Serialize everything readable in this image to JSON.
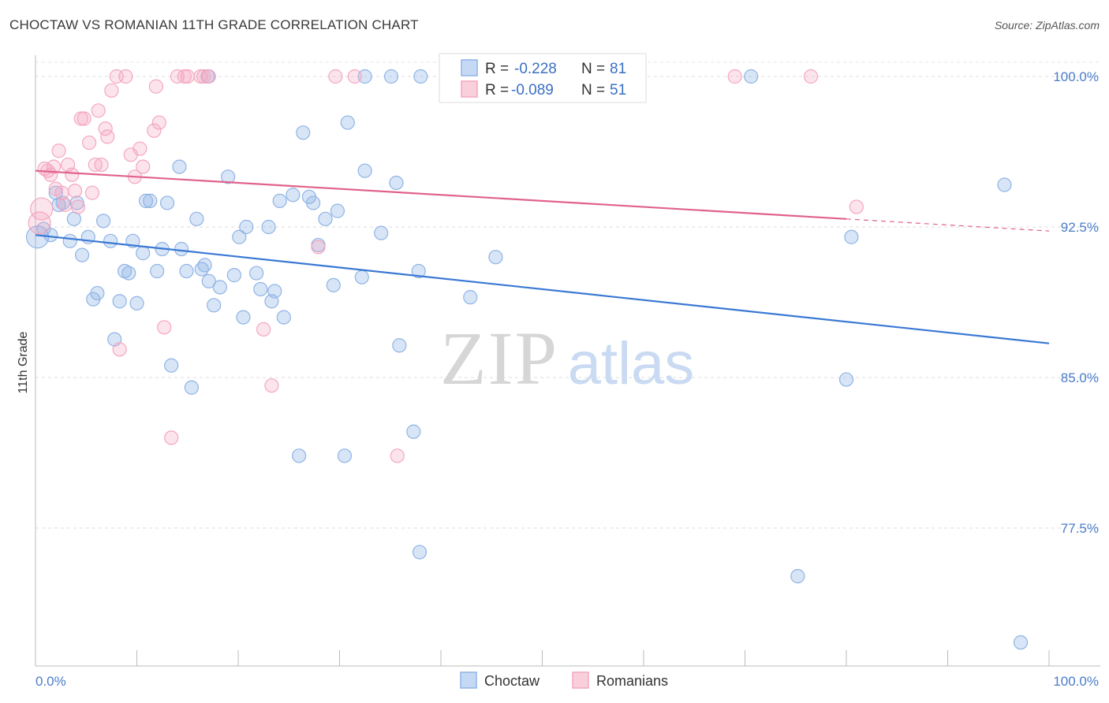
{
  "title": "CHOCTAW VS ROMANIAN 11TH GRADE CORRELATION CHART",
  "source": "Source: ZipAtlas.com",
  "watermark": {
    "zip": "ZIP",
    "atlas": "atlas"
  },
  "chart_data": {
    "type": "scatter",
    "title": "CHOCTAW VS ROMANIAN 11TH GRADE CORRELATION CHART",
    "xlabel": "",
    "ylabel": "11th Grade",
    "xlim": [
      0,
      100
    ],
    "ylim": [
      71,
      100.5
    ],
    "x_tick_labels": [
      "0.0%",
      "100.0%"
    ],
    "y_ticks": [
      77.5,
      85.0,
      92.5,
      100.0
    ],
    "y_tick_labels": [
      "77.5%",
      "85.0%",
      "92.5%",
      "100.0%"
    ],
    "grid": true,
    "legend_position": "top-center",
    "series": [
      {
        "name": "Choctaw",
        "color": "#8fb4e6",
        "line_color": "#3a78d4",
        "R": "-0.228",
        "N": "81",
        "trend": {
          "x": [
            0,
            100
          ],
          "y": [
            92.1,
            86.7
          ]
        },
        "points": [
          [
            0.2,
            92.0
          ],
          [
            0.8,
            92.4
          ],
          [
            1.5,
            92.1
          ],
          [
            2.0,
            94.2
          ],
          [
            2.3,
            93.6
          ],
          [
            2.7,
            93.7
          ],
          [
            3.4,
            91.8
          ],
          [
            3.8,
            92.9
          ],
          [
            4.1,
            93.7
          ],
          [
            4.6,
            91.1
          ],
          [
            5.2,
            92.0
          ],
          [
            5.7,
            88.9
          ],
          [
            6.1,
            89.2
          ],
          [
            6.7,
            92.8
          ],
          [
            7.4,
            91.8
          ],
          [
            7.8,
            86.9
          ],
          [
            8.3,
            88.8
          ],
          [
            8.8,
            90.3
          ],
          [
            9.2,
            90.2
          ],
          [
            9.6,
            91.8
          ],
          [
            10.0,
            88.7
          ],
          [
            10.6,
            91.2
          ],
          [
            10.9,
            93.8
          ],
          [
            11.3,
            93.8
          ],
          [
            12.0,
            90.3
          ],
          [
            12.5,
            91.4
          ],
          [
            13.0,
            93.7
          ],
          [
            13.4,
            85.6
          ],
          [
            14.2,
            95.5
          ],
          [
            14.4,
            91.4
          ],
          [
            14.9,
            90.3
          ],
          [
            15.4,
            84.5
          ],
          [
            15.9,
            92.9
          ],
          [
            16.4,
            90.4
          ],
          [
            16.7,
            90.6
          ],
          [
            17.1,
            89.8
          ],
          [
            17.6,
            88.6
          ],
          [
            18.2,
            89.5
          ],
          [
            19.0,
            95.0
          ],
          [
            19.6,
            90.1
          ],
          [
            20.1,
            92.0
          ],
          [
            20.5,
            88.0
          ],
          [
            20.8,
            92.5
          ],
          [
            21.8,
            90.2
          ],
          [
            22.2,
            89.4
          ],
          [
            23.0,
            92.5
          ],
          [
            23.3,
            88.8
          ],
          [
            23.6,
            89.3
          ],
          [
            24.1,
            93.8
          ],
          [
            24.5,
            88.0
          ],
          [
            25.4,
            94.1
          ],
          [
            26.0,
            81.1
          ],
          [
            26.4,
            97.2
          ],
          [
            27.0,
            94.0
          ],
          [
            27.4,
            93.7
          ],
          [
            27.9,
            91.6
          ],
          [
            28.6,
            92.9
          ],
          [
            29.4,
            89.6
          ],
          [
            29.8,
            93.3
          ],
          [
            30.5,
            81.1
          ],
          [
            30.8,
            97.7
          ],
          [
            32.2,
            90.0
          ],
          [
            32.5,
            95.3
          ],
          [
            34.1,
            92.2
          ],
          [
            35.6,
            94.7
          ],
          [
            35.9,
            86.6
          ],
          [
            37.8,
            90.3
          ],
          [
            37.3,
            82.3
          ],
          [
            37.9,
            76.3
          ],
          [
            38.0,
            100.0
          ],
          [
            42.9,
            89.0
          ],
          [
            45.4,
            91.0
          ],
          [
            32.5,
            100.0
          ],
          [
            35.1,
            100.0
          ],
          [
            70.6,
            100.0
          ],
          [
            80.0,
            84.9
          ],
          [
            80.5,
            92.0
          ],
          [
            95.6,
            94.6
          ],
          [
            97.2,
            71.8
          ],
          [
            75.2,
            75.1
          ],
          [
            17.0,
            100.0
          ]
        ]
      },
      {
        "name": "Romanians",
        "color": "#f4a7bf",
        "line_color": "#e0628c",
        "R": "-0.089",
        "N": "51",
        "trend": {
          "x": [
            0,
            80
          ],
          "y": [
            95.3,
            92.9
          ]
        },
        "points": [
          [
            0.4,
            92.7
          ],
          [
            0.6,
            93.4
          ],
          [
            0.9,
            95.4
          ],
          [
            1.2,
            95.3
          ],
          [
            1.5,
            95.1
          ],
          [
            1.8,
            95.5
          ],
          [
            2.0,
            94.4
          ],
          [
            2.3,
            96.3
          ],
          [
            2.6,
            94.2
          ],
          [
            2.9,
            93.6
          ],
          [
            3.2,
            95.6
          ],
          [
            3.6,
            95.1
          ],
          [
            3.9,
            94.3
          ],
          [
            4.2,
            93.5
          ],
          [
            4.5,
            97.9
          ],
          [
            4.8,
            97.9
          ],
          [
            5.3,
            96.7
          ],
          [
            5.6,
            94.2
          ],
          [
            5.9,
            95.6
          ],
          [
            6.2,
            98.3
          ],
          [
            6.5,
            95.6
          ],
          [
            6.9,
            97.4
          ],
          [
            7.1,
            97.0
          ],
          [
            7.5,
            99.3
          ],
          [
            8.0,
            100.0
          ],
          [
            8.3,
            86.4
          ],
          [
            8.9,
            100.0
          ],
          [
            9.4,
            96.1
          ],
          [
            9.8,
            95.0
          ],
          [
            10.3,
            96.4
          ],
          [
            10.6,
            95.5
          ],
          [
            11.7,
            97.3
          ],
          [
            11.9,
            99.5
          ],
          [
            12.2,
            97.7
          ],
          [
            12.7,
            87.5
          ],
          [
            13.4,
            82.0
          ],
          [
            14.0,
            100.0
          ],
          [
            14.7,
            100.0
          ],
          [
            15.0,
            100.0
          ],
          [
            16.3,
            100.0
          ],
          [
            16.6,
            100.0
          ],
          [
            17.1,
            100.0
          ],
          [
            22.5,
            87.4
          ],
          [
            23.3,
            84.6
          ],
          [
            27.9,
            91.5
          ],
          [
            29.6,
            100.0
          ],
          [
            31.5,
            100.0
          ],
          [
            35.7,
            81.1
          ],
          [
            69.0,
            100.0
          ],
          [
            76.5,
            100.0
          ],
          [
            81.0,
            93.5
          ]
        ]
      }
    ]
  }
}
